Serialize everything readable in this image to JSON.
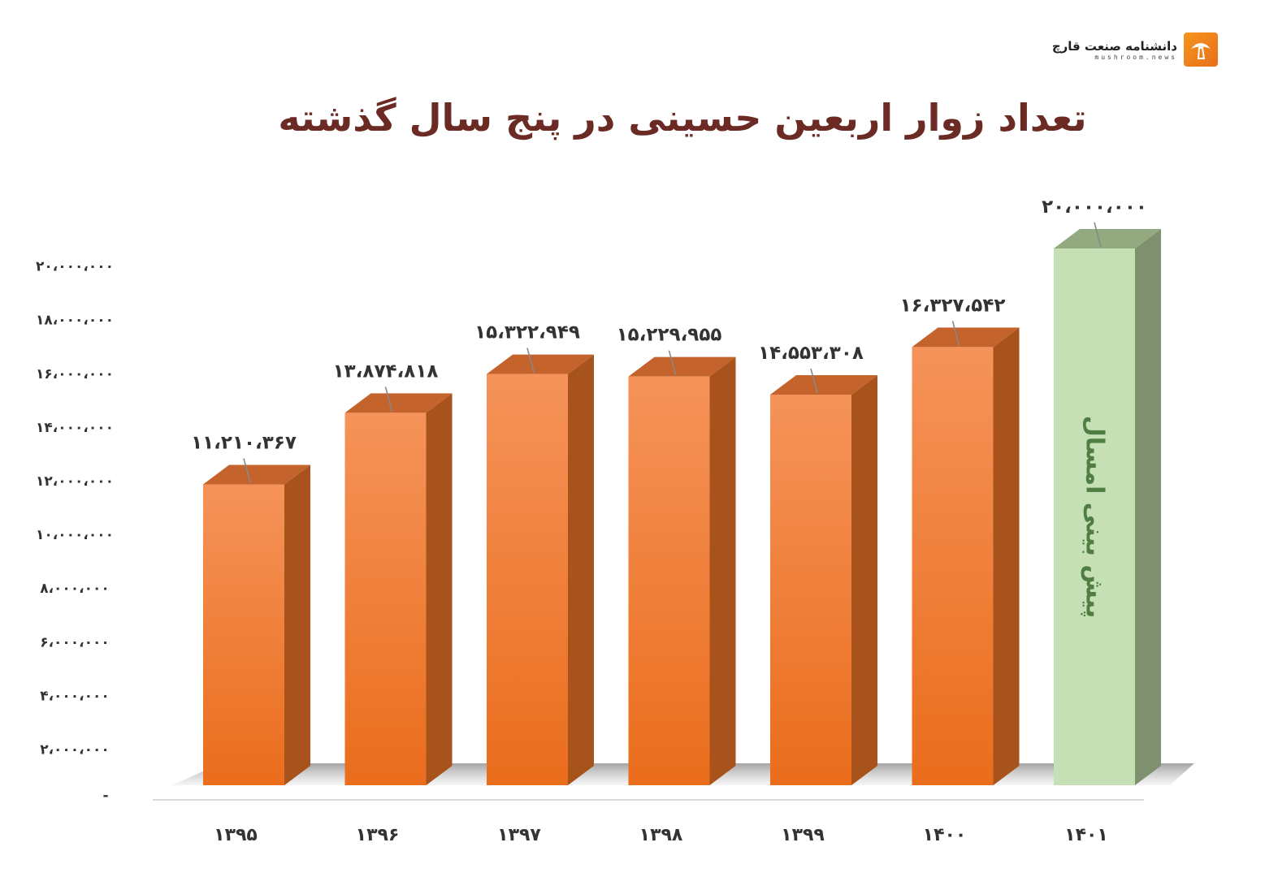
{
  "brand": {
    "name": "دانشنامه صنعت قارچ",
    "domain": "mushroom.news"
  },
  "colors": {
    "bar_front": "#f07f2e",
    "bar_front_light": "#f5935a",
    "bar_side": "#a8521c",
    "bar_top": "#c4632c",
    "forecast_front": "#c5e0b4",
    "forecast_side": "#7f906f",
    "forecast_top": "#93aa80",
    "forecast_text": "#4f7d42",
    "title": "#6b2a24"
  },
  "chart_data": {
    "type": "bar",
    "title": "تعداد زوار اربعین حسینی در پنج سال گذشته",
    "categories": [
      "۱۳۹۵",
      "۱۳۹۶",
      "۱۳۹۷",
      "۱۳۹۸",
      "۱۳۹۹",
      "۱۴۰۰",
      "۱۴۰۱"
    ],
    "values": [
      11210367,
      13874818,
      15322949,
      15229955,
      14553308,
      16327542,
      20000000
    ],
    "data_labels": [
      "۱۱،۲۱۰،۳۶۷",
      "۱۳،۸۷۴،۸۱۸",
      "۱۵،۳۲۲،۹۴۹",
      "۱۵،۲۲۹،۹۵۵",
      "۱۴،۵۵۳،۳۰۸",
      "۱۶،۳۲۷،۵۴۲",
      "۲۰،۰۰۰،۰۰۰"
    ],
    "forecast_index": 6,
    "forecast_label": "پیش بینی امسال",
    "y_ticks": [
      {
        "value": 0,
        "label": "-"
      },
      {
        "value": 2000000,
        "label": "۲،۰۰۰،۰۰۰"
      },
      {
        "value": 4000000,
        "label": "۴،۰۰۰،۰۰۰"
      },
      {
        "value": 6000000,
        "label": "۶،۰۰۰،۰۰۰"
      },
      {
        "value": 8000000,
        "label": "۸،۰۰۰،۰۰۰"
      },
      {
        "value": 10000000,
        "label": "۱۰،۰۰۰،۰۰۰"
      },
      {
        "value": 12000000,
        "label": "۱۲،۰۰۰،۰۰۰"
      },
      {
        "value": 14000000,
        "label": "۱۴،۰۰۰،۰۰۰"
      },
      {
        "value": 16000000,
        "label": "۱۶،۰۰۰،۰۰۰"
      },
      {
        "value": 18000000,
        "label": "۱۸،۰۰۰،۰۰۰"
      },
      {
        "value": 20000000,
        "label": "۲۰،۰۰۰،۰۰۰"
      }
    ],
    "ylim": [
      0,
      20000000
    ],
    "grid": false,
    "legend": "none"
  }
}
